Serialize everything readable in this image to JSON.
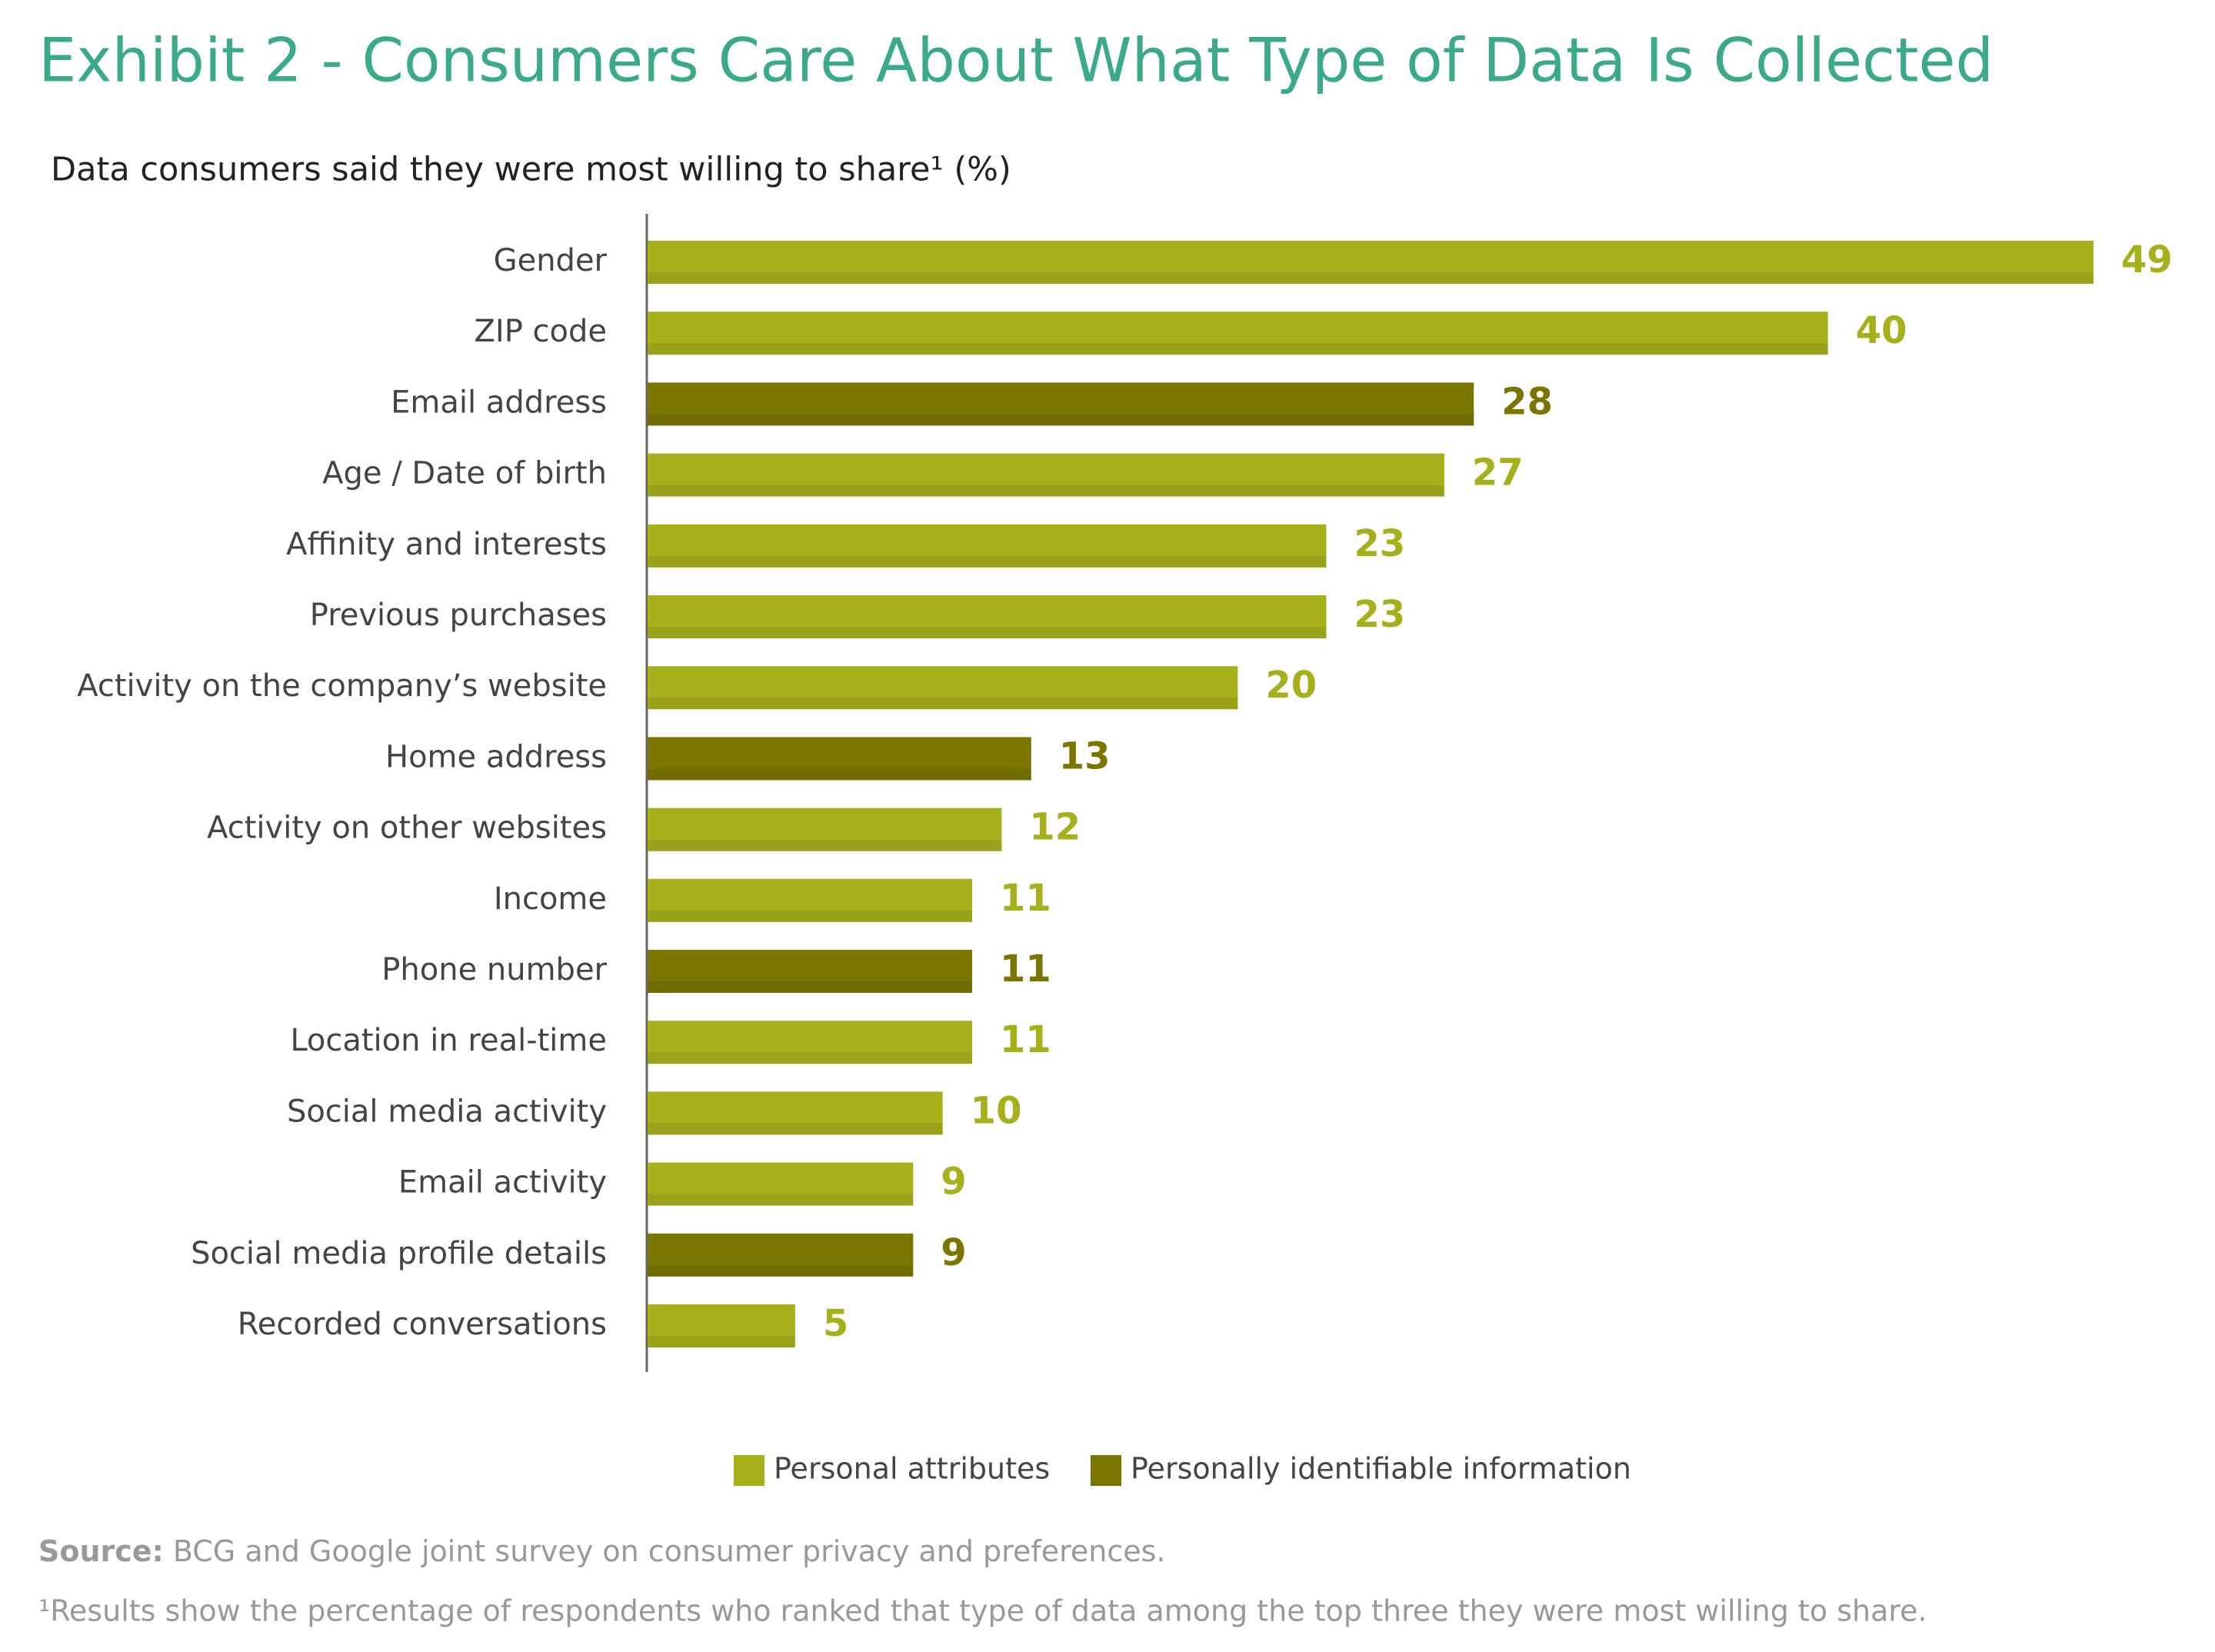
{
  "chart_data": {
    "type": "bar",
    "orientation": "horizontal",
    "title": "Exhibit 2 - Consumers Care About What Type of Data Is Collected",
    "subtitle": "Data consumers said they were most willing to share¹ (%)",
    "categories": [
      "Gender",
      "ZIP code",
      "Email address",
      "Age / Date of birth",
      "Affinity and interests",
      "Previous purchases",
      "Activity on the company’s website",
      "Home address",
      "Activity on other websites",
      "Income",
      "Phone number",
      "Location in real-time",
      "Social media activity",
      "Email activity",
      "Social media profile details",
      "Recorded conversations"
    ],
    "series": [
      {
        "name": "Personal attributes",
        "color": "#a6b01b",
        "values": [
          49,
          40,
          null,
          27,
          23,
          23,
          20,
          null,
          12,
          11,
          null,
          11,
          10,
          9,
          null,
          5
        ]
      },
      {
        "name": "Personally identifiable information",
        "color": "#7a7600",
        "values": [
          null,
          null,
          28,
          null,
          null,
          null,
          null,
          13,
          null,
          null,
          11,
          null,
          null,
          null,
          9,
          null
        ]
      }
    ],
    "source_label": "Source:",
    "source": "BCG and Google joint survey on consumer privacy and preferences.",
    "footnote": "¹Results show the percentage of respondents who ranked that type of data among the top three they were most willing to share."
  }
}
